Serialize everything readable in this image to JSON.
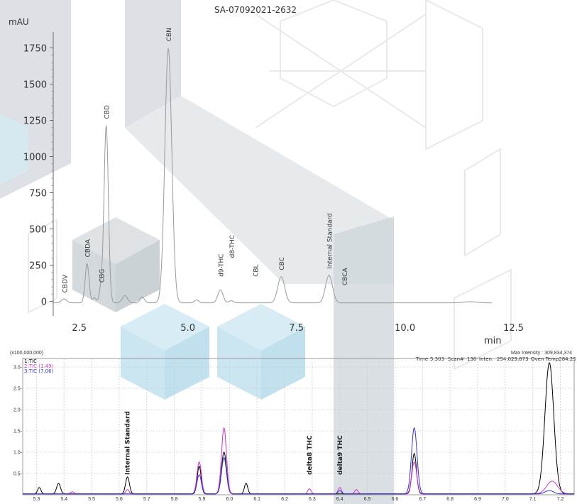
{
  "sample_id": "SA-07092021-2632",
  "chart_data": [
    {
      "type": "line",
      "title": "SA-07092021-2632",
      "ylabel": "mAU",
      "xlabel": "min",
      "xlim": [
        1.9,
        12.0
      ],
      "ylim": [
        -100,
        1860
      ],
      "xticks": [
        2.5,
        5.0,
        7.5,
        10.0,
        12.5
      ],
      "xtick_labels": [
        "2.5",
        "5.0",
        "7.5",
        "10.0",
        "12.5"
      ],
      "yticks": [
        0,
        250,
        500,
        750,
        1000,
        1250,
        1500,
        1750
      ],
      "ytick_labels": [
        "0",
        "250",
        "500",
        "750",
        "1000",
        "1250",
        "1500",
        "1750"
      ],
      "baseline": -10,
      "line_color": "#999999",
      "peaks": [
        {
          "x": 2.15,
          "y": 28,
          "w": 0.06
        },
        {
          "x": 2.68,
          "y": 270,
          "w": 0.045
        },
        {
          "x": 2.85,
          "y": 35,
          "w": 0.04
        },
        {
          "x": 3.0,
          "y": 100,
          "w": 0.04
        },
        {
          "x": 3.12,
          "y": 1220,
          "w": 0.05
        },
        {
          "x": 3.55,
          "y": 50,
          "w": 0.06
        },
        {
          "x": 3.95,
          "y": 40,
          "w": 0.05
        },
        {
          "x": 4.55,
          "y": 1755,
          "w": 0.08
        },
        {
          "x": 5.2,
          "y": 20,
          "w": 0.05
        },
        {
          "x": 5.75,
          "y": 90,
          "w": 0.06
        },
        {
          "x": 6.0,
          "y": 15,
          "w": 0.05
        },
        {
          "x": 7.15,
          "y": 180,
          "w": 0.08
        },
        {
          "x": 8.25,
          "y": 190,
          "w": 0.08
        },
        {
          "x": 11.5,
          "y": 8,
          "w": 0.15
        }
      ],
      "peak_labels": [
        {
          "text": "CBDV",
          "x": 2.15,
          "y": 60
        },
        {
          "text": "CBDA",
          "x": 2.68,
          "y": 305
        },
        {
          "text": "CBG",
          "x": 3.0,
          "y": 130
        },
        {
          "text": "CBD",
          "x": 3.12,
          "y": 1260
        },
        {
          "text": "CBN",
          "x": 4.55,
          "y": 1795
        },
        {
          "text": "d9-THC",
          "x": 5.75,
          "y": 170
        },
        {
          "text": "d8-THC",
          "x": 6.0,
          "y": 300
        },
        {
          "text": "CBL",
          "x": 6.55,
          "y": 170
        },
        {
          "text": "CBC",
          "x": 7.15,
          "y": 215
        },
        {
          "text": "Internal Standard",
          "x": 8.25,
          "y": 225
        },
        {
          "text": "CBCA",
          "x": 8.6,
          "y": 110
        }
      ]
    },
    {
      "type": "line",
      "y_scale_label": "(x100,000,000)",
      "info": {
        "max_intensity": "Max Intensity : 309,834,374",
        "time": "Time",
        "time_value": "5.303",
        "scan": "Scan#",
        "scan_value": "130",
        "inten": "Inten.",
        "inten_value": "254,029,873",
        "oven": "Oven Temp284.25"
      },
      "xlim": [
        5.25,
        7.25
      ],
      "ylim": [
        0,
        3.2
      ],
      "xticks": [
        5.3,
        5.4,
        5.5,
        5.6,
        5.7,
        5.8,
        5.9,
        6.0,
        6.1,
        6.2,
        6.3,
        6.4,
        6.5,
        6.6,
        6.7,
        6.8,
        6.9,
        7.0,
        7.1,
        7.2
      ],
      "xtick_labels": [
        "5.3",
        "5.4",
        "5.5",
        "5.6",
        "5.7",
        "5.8",
        "5.9",
        "6.0",
        "6.1",
        "6.2",
        "6.3",
        "6.4",
        "6.5",
        "6.6",
        "6.7",
        "6.8",
        "6.9",
        "7.0",
        "7.1",
        "7.2"
      ],
      "yticks": [
        0.5,
        1.0,
        1.5,
        2.0,
        2.5,
        3.0
      ],
      "ytick_labels": [
        "0.5-",
        "1.0-",
        "1.5-",
        "2.0-",
        "2.5-",
        "3.0-"
      ],
      "series": [
        {
          "name": "1:TIC",
          "color": "#000000",
          "peaks": [
            {
              "x": 5.31,
              "y": 0.15,
              "w": 0.006
            },
            {
              "x": 5.38,
              "y": 0.25,
              "w": 0.007
            },
            {
              "x": 5.63,
              "y": 0.4,
              "w": 0.007
            },
            {
              "x": 5.89,
              "y": 0.65,
              "w": 0.007
            },
            {
              "x": 5.98,
              "y": 0.98,
              "w": 0.009
            },
            {
              "x": 6.06,
              "y": 0.25,
              "w": 0.006
            },
            {
              "x": 6.67,
              "y": 0.95,
              "w": 0.008
            },
            {
              "x": 7.16,
              "y": 3.08,
              "w": 0.016
            }
          ]
        },
        {
          "name": "2:TIC (1.49)",
          "color": "#cc33cc",
          "peaks": [
            {
              "x": 5.43,
              "y": 0.05,
              "w": 0.006
            },
            {
              "x": 5.63,
              "y": 0.1,
              "w": 0.006
            },
            {
              "x": 5.89,
              "y": 0.75,
              "w": 0.008
            },
            {
              "x": 5.98,
              "y": 1.55,
              "w": 0.009
            },
            {
              "x": 6.29,
              "y": 0.12,
              "w": 0.006
            },
            {
              "x": 6.4,
              "y": 0.15,
              "w": 0.006
            },
            {
              "x": 6.46,
              "y": 0.1,
              "w": 0.006
            },
            {
              "x": 6.67,
              "y": 0.75,
              "w": 0.009
            },
            {
              "x": 7.17,
              "y": 0.3,
              "w": 0.02
            }
          ]
        },
        {
          "name": "3:TIC (7.06)",
          "color": "#3333cc",
          "peaks": [
            {
              "x": 5.89,
              "y": 0.45,
              "w": 0.008
            },
            {
              "x": 5.98,
              "y": 0.85,
              "w": 0.009
            },
            {
              "x": 6.4,
              "y": 0.08,
              "w": 0.006
            },
            {
              "x": 6.67,
              "y": 1.55,
              "w": 0.01
            },
            {
              "x": 7.16,
              "y": 0.08,
              "w": 0.015
            }
          ]
        }
      ],
      "peak_labels": [
        {
          "text": "Internal Standard",
          "x": 5.63
        },
        {
          "text": "delta8 THC",
          "x": 6.29
        },
        {
          "text": "delta9 THC",
          "x": 6.4
        }
      ]
    }
  ]
}
